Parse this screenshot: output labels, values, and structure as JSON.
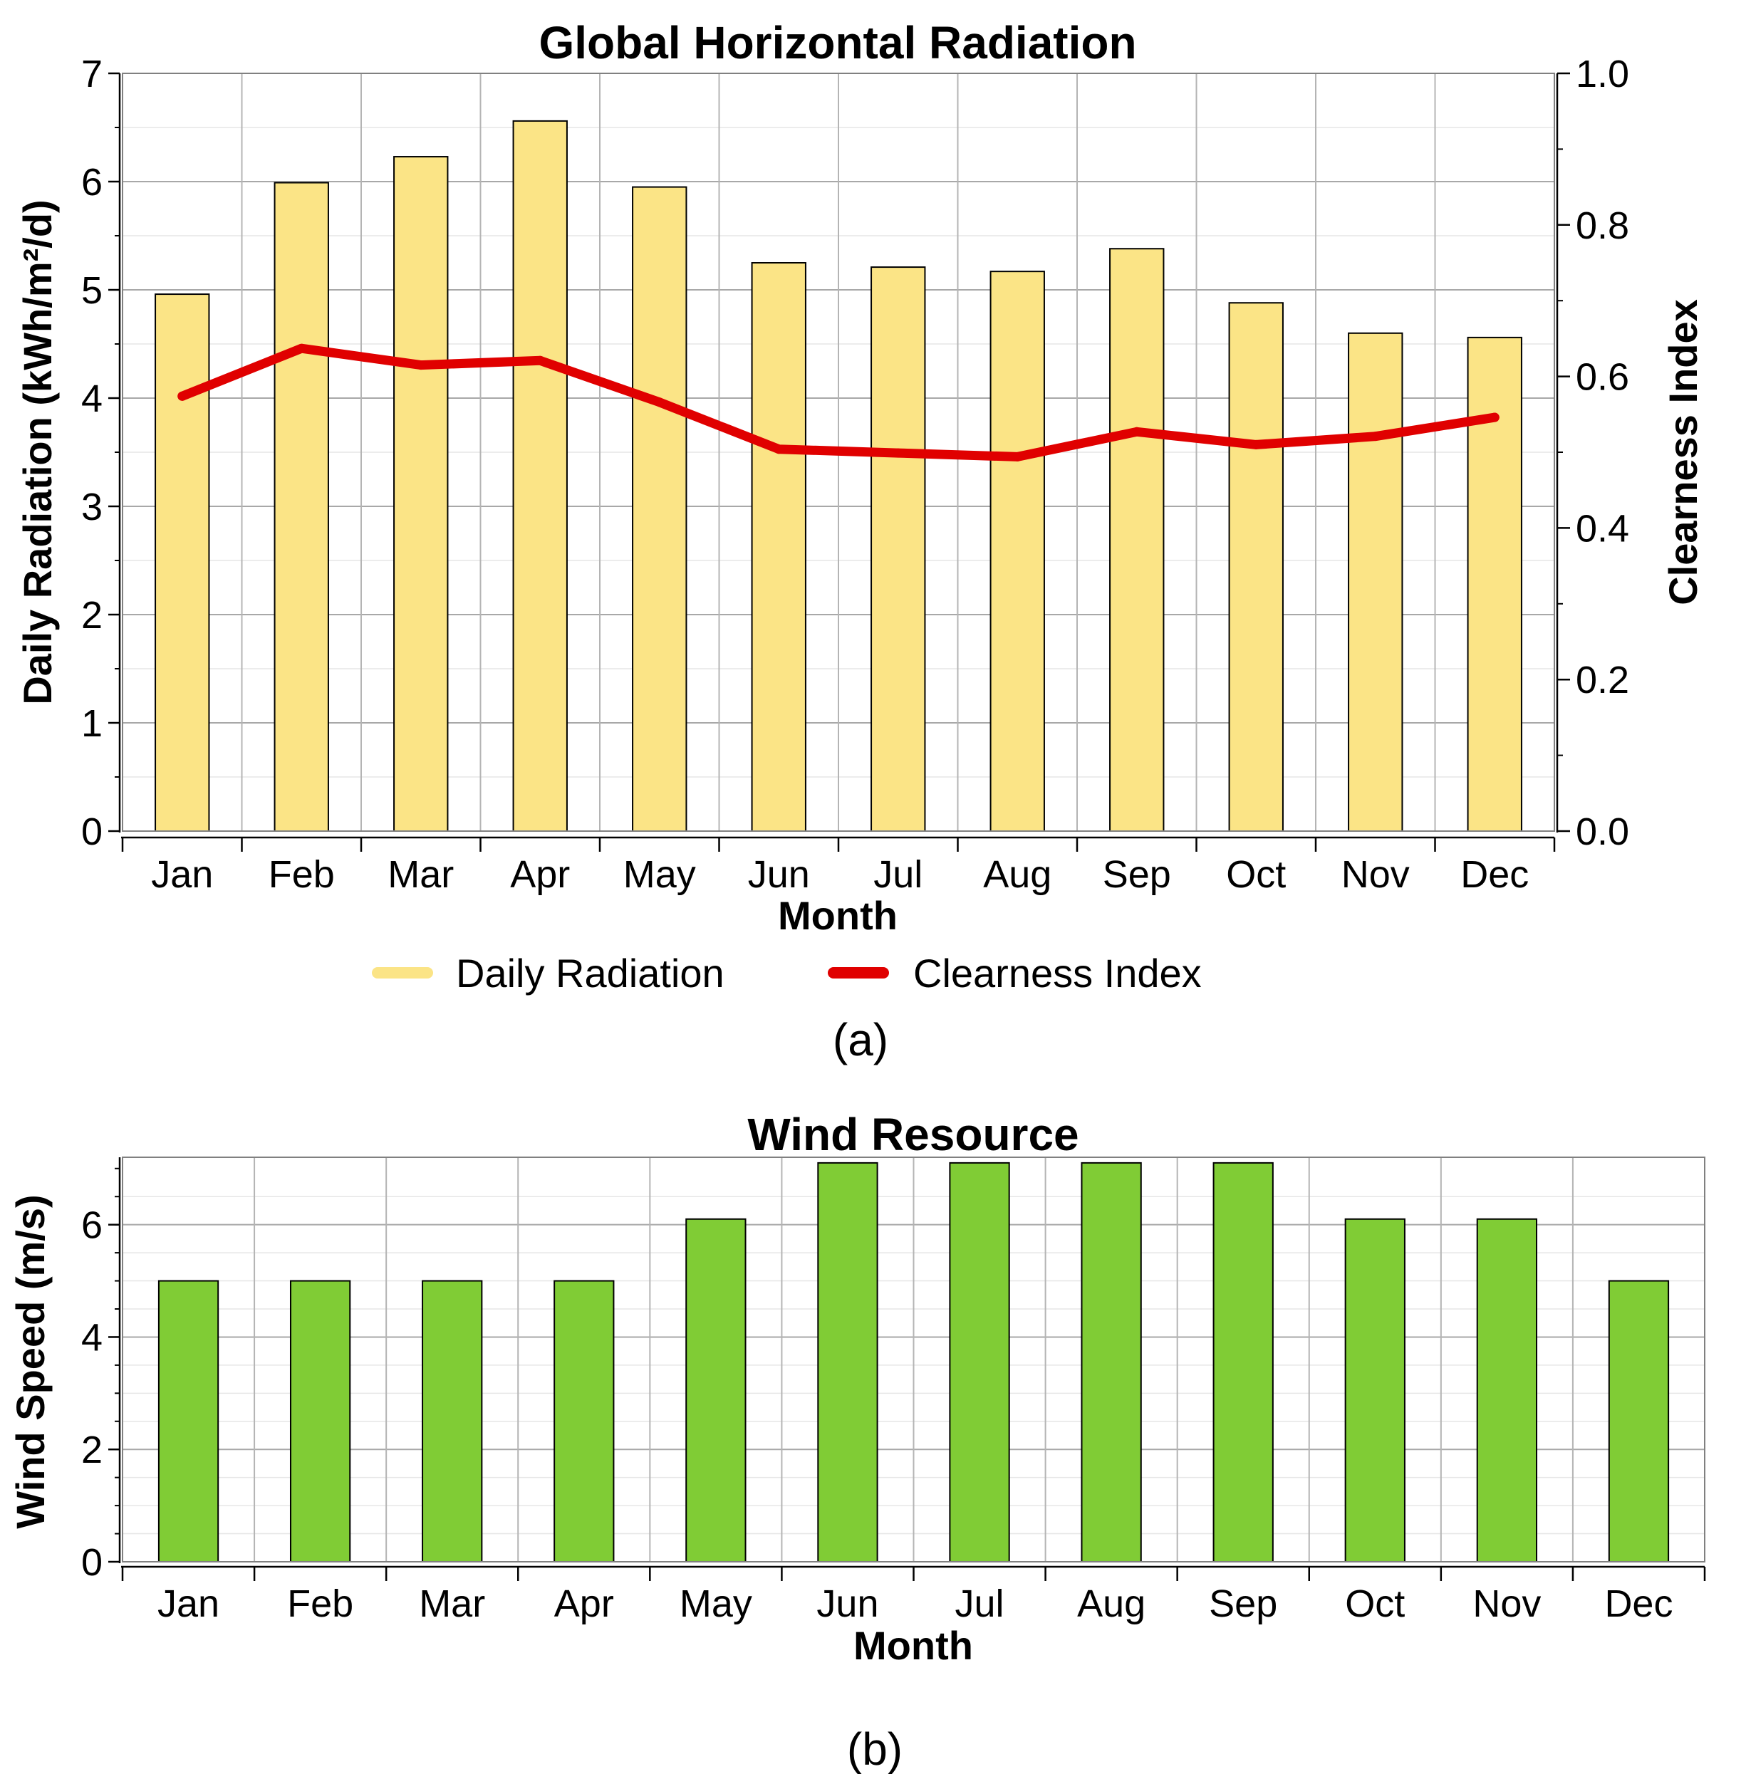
{
  "chart_data": [
    {
      "type": "bar+line",
      "title": "Global Horizontal Radiation",
      "caption": "(a)",
      "xlabel": "Month",
      "ylabel": "Daily Radiation (kWh/m²/d)",
      "y2label": "Clearness Index",
      "categories": [
        "Jan",
        "Feb",
        "Mar",
        "Apr",
        "May",
        "Jun",
        "Jul",
        "Aug",
        "Sep",
        "Oct",
        "Nov",
        "Dec"
      ],
      "ylim": [
        0,
        7
      ],
      "yticks": [
        "0",
        "1",
        "2",
        "3",
        "4",
        "5",
        "6",
        "7"
      ],
      "y2lim": [
        0,
        1
      ],
      "y2ticks": [
        "0.0",
        "0.2",
        "0.4",
        "0.6",
        "0.8",
        "1.0"
      ],
      "grid": true,
      "legend_position": "bottom",
      "series": [
        {
          "name": "Daily Radiation",
          "kind": "bar",
          "axis": "left",
          "color": "#fbe486",
          "values": [
            4.96,
            5.99,
            6.23,
            6.56,
            5.95,
            5.25,
            5.21,
            5.17,
            5.38,
            4.88,
            4.6,
            4.56
          ]
        },
        {
          "name": "Clearness Index",
          "kind": "line",
          "axis": "right",
          "color": "#e00000",
          "values": [
            0.574,
            0.637,
            0.615,
            0.621,
            0.566,
            0.504,
            0.499,
            0.494,
            0.527,
            0.51,
            0.521,
            0.546
          ]
        }
      ]
    },
    {
      "type": "bar",
      "title": "Wind Resource",
      "caption": "(b)",
      "xlabel": "Month",
      "ylabel": "Wind Speed (m/s)",
      "categories": [
        "Jan",
        "Feb",
        "Mar",
        "Apr",
        "May",
        "Jun",
        "Jul",
        "Aug",
        "Sep",
        "Oct",
        "Nov",
        "Dec"
      ],
      "ylim": [
        0,
        7.2
      ],
      "yticks": [
        "0",
        "2",
        "4",
        "6"
      ],
      "grid": true,
      "series": [
        {
          "name": "Wind Speed",
          "kind": "bar",
          "color": "#80cc35",
          "values": [
            5,
            5,
            5,
            5,
            6.1,
            7.1,
            7.1,
            7.1,
            7.1,
            6.1,
            6.1,
            5
          ]
        }
      ]
    }
  ]
}
